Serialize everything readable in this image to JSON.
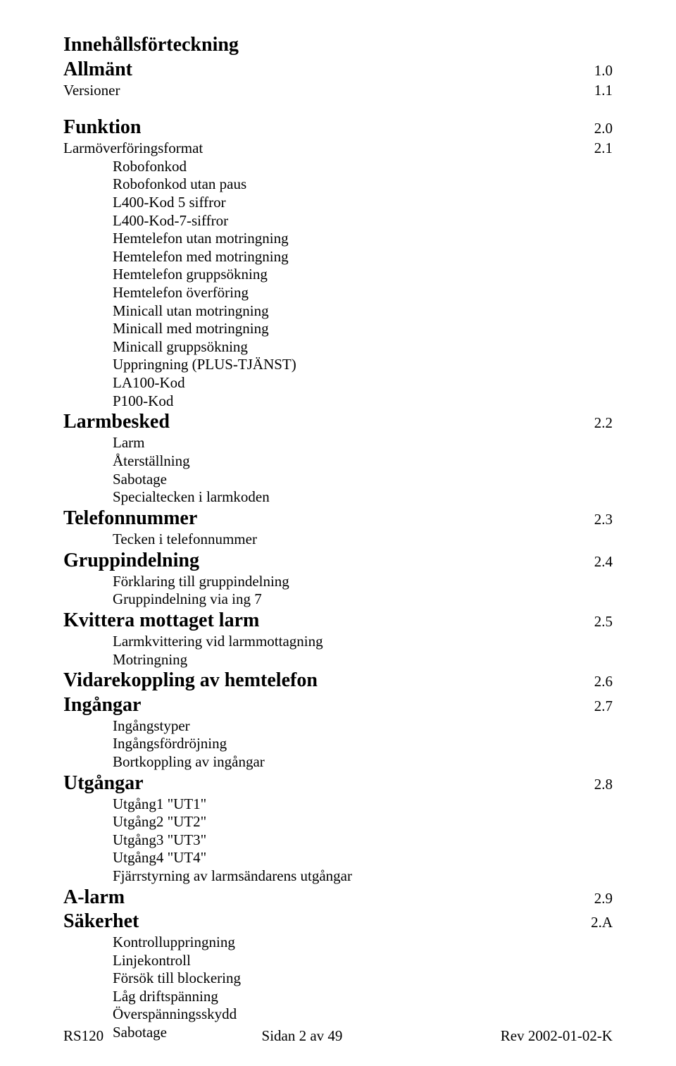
{
  "title": "Innehållsförteckning",
  "sections": [
    {
      "label": "Allmänt",
      "num": "1.0",
      "bold": true,
      "subs": []
    },
    {
      "label": "Versioner",
      "num": "1.1",
      "bold": false,
      "subs": []
    },
    {
      "label": "Funktion",
      "num": "2.0",
      "bold": true,
      "subs": []
    },
    {
      "label": "Larmöverföringsformat",
      "num": "2.1",
      "bold": false,
      "subs": [
        "Robofonkod",
        "Robofonkod utan paus",
        "L400-Kod 5 siffror",
        "L400-Kod-7-siffror",
        "Hemtelefon utan motringning",
        "Hemtelefon med motringning",
        "Hemtelefon gruppsökning",
        "Hemtelefon överföring",
        "Minicall utan motringning",
        "Minicall med motringning",
        "Minicall gruppsökning",
        "Uppringning (PLUS-TJÄNST)",
        "LA100-Kod",
        "P100-Kod"
      ]
    },
    {
      "label": "Larmbesked",
      "num": "2.2",
      "bold": true,
      "subs": [
        "Larm",
        "Återställning",
        "Sabotage",
        "Specialtecken i larmkoden"
      ]
    },
    {
      "label": "Telefonnummer",
      "num": "2.3",
      "bold": true,
      "subs": [
        "Tecken i telefonnummer"
      ]
    },
    {
      "label": "Gruppindelning",
      "num": "2.4",
      "bold": true,
      "subs": [
        "Förklaring till gruppindelning",
        "Gruppindelning via ing 7"
      ]
    },
    {
      "label": "Kvittera mottaget larm",
      "num": "2.5",
      "bold": true,
      "subs": [
        "Larmkvittering vid larmmottagning",
        "Motringning"
      ]
    },
    {
      "label": "Vidarekoppling av hemtelefon",
      "num": "2.6",
      "bold": true,
      "subs": []
    },
    {
      "label": "Ingångar",
      "num": "2.7",
      "bold": true,
      "subs": [
        "Ingångstyper",
        "Ingångsfördröjning",
        "Bortkoppling av ingångar"
      ]
    },
    {
      "label": "Utgångar",
      "num": "2.8",
      "bold": true,
      "subs": [
        "Utgång1 \"UT1\"",
        "Utgång2 \"UT2\"",
        "Utgång3 \"UT3\"",
        "Utgång4 \"UT4\"",
        "Fjärrstyrning av larmsändarens utgångar"
      ]
    },
    {
      "label": "A-larm",
      "num": "2.9",
      "bold": true,
      "subs": []
    },
    {
      "label": "Säkerhet",
      "num": "2.A",
      "bold": true,
      "subs": [
        "Kontrolluppringning",
        "Linjekontroll",
        "Försök till blockering",
        "Låg driftspänning",
        "Överspänningsskydd",
        "Sabotage"
      ]
    }
  ],
  "spacer_after": [
    1
  ],
  "footer": {
    "left": "RS120",
    "center": "Sidan 2 av 49",
    "right": "Rev 2002-01-02-K"
  }
}
